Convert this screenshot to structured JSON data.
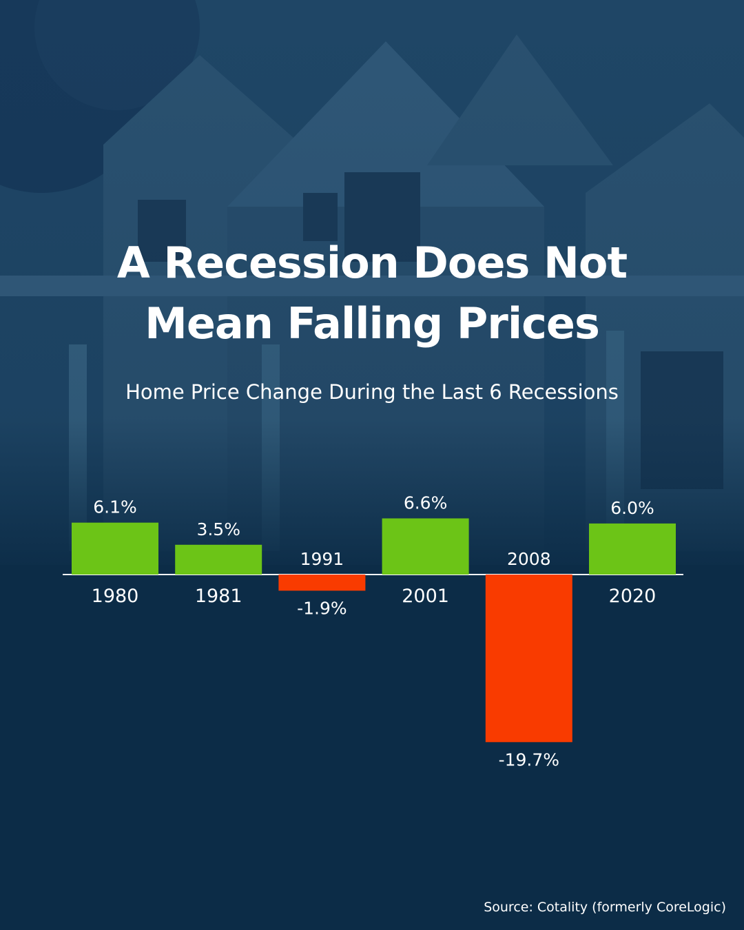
{
  "header": {
    "title_line1": "A Recession Does Not",
    "title_line2": "Mean Falling Prices",
    "subtitle": "Home Price Change During the Last 6 Recessions"
  },
  "footer": {
    "source": "Source: Cotality (formerly CoreLogic)"
  },
  "colors": {
    "positive": "#6cc417",
    "negative": "#f93b00",
    "background": "#0c2c47",
    "text": "#ffffff"
  },
  "chart_data": {
    "type": "bar",
    "title": "Home Price Change During the Last 6 Recessions",
    "categories": [
      "1980",
      "1981",
      "1991",
      "2001",
      "2008",
      "2020"
    ],
    "values": [
      6.1,
      3.5,
      -1.9,
      6.6,
      -19.7,
      6.0
    ],
    "value_labels": [
      "6.1%",
      "3.5%",
      "-1.9%",
      "6.6%",
      "-19.7%",
      "6.0%"
    ],
    "unit": "%",
    "grid": false,
    "legend": "none"
  }
}
